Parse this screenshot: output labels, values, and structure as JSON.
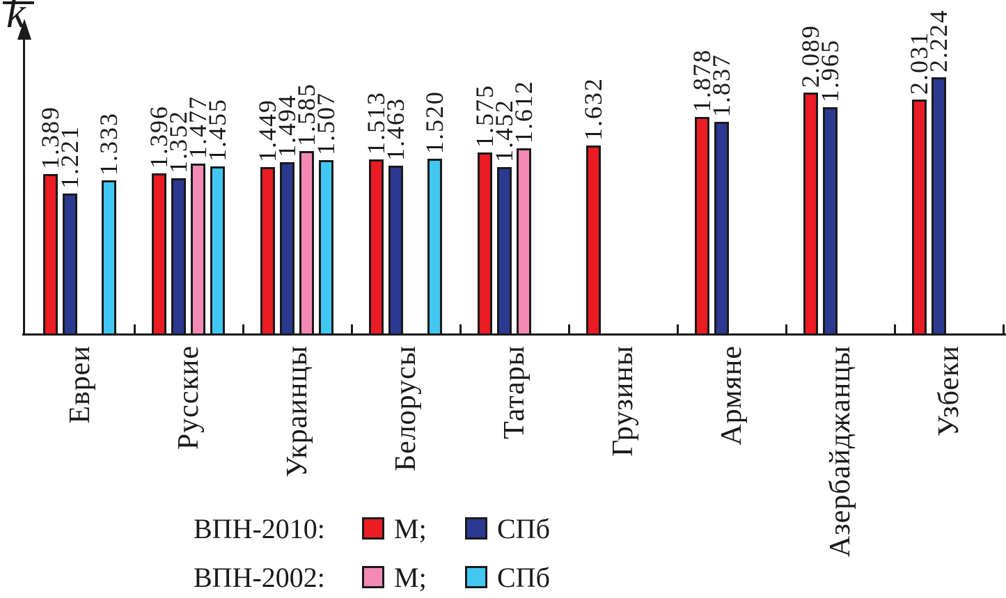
{
  "figure": {
    "ylabel_letter": "k",
    "background": "#ffffff",
    "axis_color": "#1a1a1a"
  },
  "chart_data": {
    "type": "bar",
    "title": "",
    "xlabel": "",
    "ylabel": "k̄",
    "ylim": [
      0,
      2.65
    ],
    "grid": false,
    "value_labels": true,
    "value_label_decimals": 3,
    "legend_position": "bottom",
    "categories": [
      "Евреи",
      "Русские",
      "Украинцы",
      "Белорусы",
      "Татары",
      "Грузины",
      "Армяне",
      "Азербайджанцы",
      "Узбеки"
    ],
    "series": [
      {
        "name": "ВПН-2010 М",
        "color": "#ec1c24",
        "values": [
          1.389,
          1.396,
          1.449,
          1.513,
          1.575,
          1.632,
          1.878,
          2.089,
          2.031
        ]
      },
      {
        "name": "ВПН-2010 СПб",
        "color": "#2b3990",
        "values": [
          1.221,
          1.352,
          1.494,
          1.463,
          1.452,
          null,
          1.837,
          1.965,
          2.224
        ]
      },
      {
        "name": "ВПН-2002 М",
        "color": "#f28ab5",
        "values": [
          null,
          1.477,
          1.585,
          null,
          1.612,
          null,
          null,
          null,
          null
        ]
      },
      {
        "name": "ВПН-2002 СПб",
        "color": "#41c7f2",
        "values": [
          1.333,
          1.455,
          1.507,
          1.52,
          null,
          null,
          null,
          null,
          null
        ]
      }
    ]
  },
  "legend": {
    "rows": [
      {
        "label": "ВПН-2010:",
        "items": [
          {
            "color": "#ec1c24",
            "text": "М;"
          },
          {
            "color": "#2b3990",
            "text": "СПб"
          }
        ]
      },
      {
        "label": "ВПН-2002:",
        "items": [
          {
            "color": "#f28ab5",
            "text": "М;"
          },
          {
            "color": "#41c7f2",
            "text": "СПб"
          }
        ]
      }
    ]
  }
}
